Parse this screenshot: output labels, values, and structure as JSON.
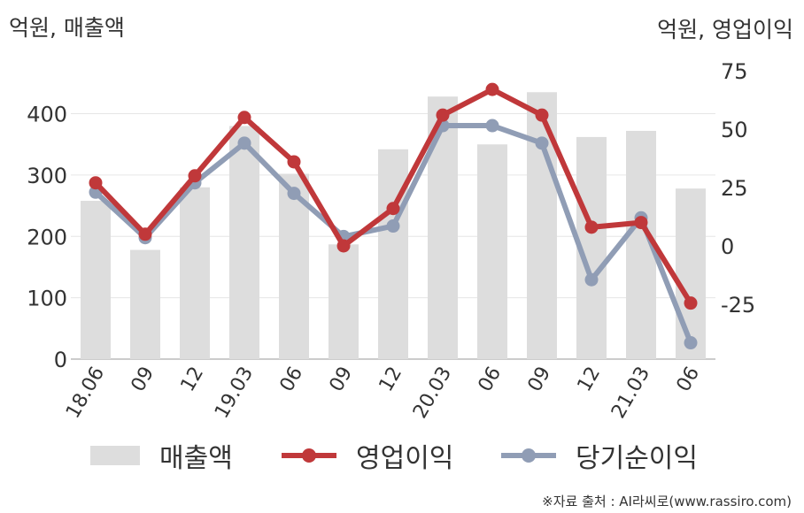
{
  "units": {
    "left": "억원, 매출액",
    "right": "억원, 영업이익"
  },
  "source": "※자료 출처 : AI라씨로(www.rassiro.com)",
  "colors": {
    "bar": "#dddddd",
    "operating": "#c0383a",
    "net": "#909db5",
    "grid": "#e6e6e6",
    "axis": "#bbbbbb"
  },
  "chart_data": {
    "type": "bar",
    "categories": [
      "18.06",
      "09",
      "12",
      "19.03",
      "06",
      "09",
      "12",
      "20.03",
      "06",
      "09",
      "12",
      "21.03",
      "06"
    ],
    "left_axis": {
      "ticks": [
        0,
        100,
        200,
        300,
        400
      ],
      "range": [
        0,
        470
      ]
    },
    "right_axis": {
      "ticks": [
        75,
        50,
        25,
        0,
        -25
      ],
      "tick_labels": [
        "75",
        "50",
        "25",
        "0",
        "-25"
      ],
      "range": [
        -48.5,
        75
      ]
    },
    "series": [
      {
        "name": "매출액",
        "type": "bar",
        "axis": "left",
        "values": [
          258,
          178,
          280,
          380,
          302,
          187,
          342,
          428,
          350,
          435,
          362,
          372,
          278
        ]
      },
      {
        "name": "영업이익",
        "type": "line",
        "axis": "right",
        "values": [
          27,
          5,
          30,
          55,
          36,
          0,
          16,
          56,
          67,
          56,
          8,
          10,
          -24.5
        ]
      },
      {
        "name": "당기순이익",
        "type": "line",
        "axis": "right",
        "values": [
          23,
          3.5,
          27,
          44,
          22.5,
          4,
          8.5,
          51.5,
          51.5,
          44,
          -14.5,
          12,
          -41.5
        ]
      }
    ]
  }
}
